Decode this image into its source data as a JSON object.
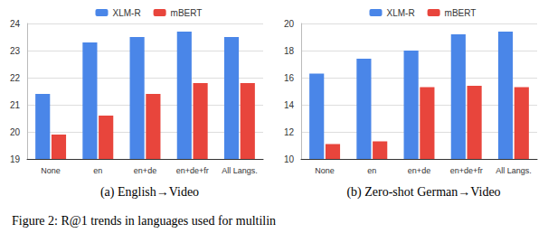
{
  "chart_data": [
    {
      "type": "bar",
      "title": "(a) English→Video",
      "categories": [
        "None",
        "en",
        "en+de",
        "en+de+fr",
        "All Langs."
      ],
      "series": [
        {
          "name": "XLM-R",
          "color": "#4a86e8",
          "values": [
            21.4,
            23.3,
            23.5,
            23.7,
            23.5
          ]
        },
        {
          "name": "mBERT",
          "color": "#e8453c",
          "values": [
            19.9,
            20.6,
            21.4,
            21.8,
            21.8
          ]
        }
      ],
      "ylim": [
        19,
        24
      ],
      "yticks": [
        19,
        20,
        21,
        22,
        23,
        24
      ],
      "grid": true,
      "legend": "top"
    },
    {
      "type": "bar",
      "title": "(b) Zero-shot German→Video",
      "categories": [
        "None",
        "en",
        "en+de",
        "en+de+fr",
        "All Langs."
      ],
      "series": [
        {
          "name": "XLM-R",
          "color": "#4a86e8",
          "values": [
            16.3,
            17.4,
            18.0,
            19.2,
            19.4
          ]
        },
        {
          "name": "mBERT",
          "color": "#e8453c",
          "values": [
            11.1,
            11.3,
            15.3,
            15.4,
            15.3
          ]
        }
      ],
      "ylim": [
        10,
        20
      ],
      "yticks": [
        10,
        12,
        14,
        16,
        18,
        20
      ],
      "grid": true,
      "legend": "top"
    }
  ],
  "caption": "Figure 2: R@1 trends in languages used for multilin"
}
